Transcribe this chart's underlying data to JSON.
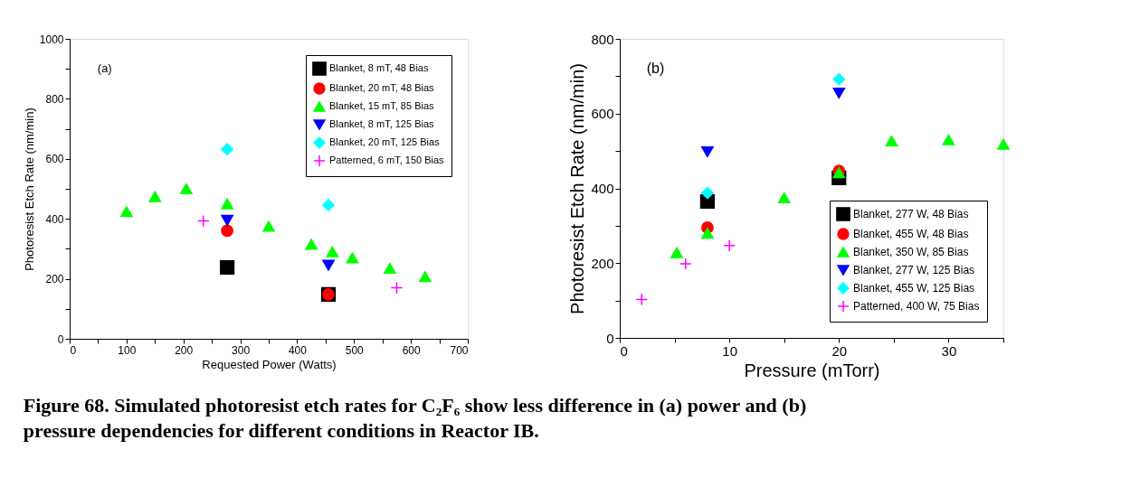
{
  "chart_data": [
    {
      "type": "scatter",
      "xlabel": "Requested Power (Watts)",
      "ylabel": "Photoresist Etch Rate (nm/min)",
      "annotations": [
        "(a)",
        "Figure 68. Simulated photoresist etch rates for C₂F₆ show less difference in (a) power and (b) pressure dependencies for different conditions in Reactor IB."
      ],
      "xlim": [
        0,
        700
      ],
      "ylim": [
        0,
        1000
      ],
      "xticks": [
        0,
        {
          "value": 50,
          "label": null
        },
        100,
        {
          "value": 150,
          "label": null
        },
        200,
        {
          "value": 250,
          "label": null
        },
        300,
        {
          "value": 350,
          "label": null
        },
        400,
        {
          "value": 450,
          "label": null
        },
        500,
        {
          "value": 550,
          "label": null
        },
        600,
        {
          "value": 650,
          "label": null
        },
        700
      ],
      "yticks": [
        0,
        {
          "value": 100,
          "label": null
        },
        200,
        {
          "value": 300,
          "label": null
        },
        400,
        {
          "value": 500,
          "label": null
        },
        600,
        {
          "value": 700,
          "label": null
        },
        800,
        {
          "value": 900,
          "label": null
        },
        1000
      ],
      "grid": false,
      "legend": "top right",
      "series": [
        {
          "name": "Blanket, 8 mT, 48 Bias",
          "color": "#000000",
          "marker": "square",
          "x": [
            277,
            455
          ],
          "values": [
            238,
            148
          ]
        },
        {
          "name": "Blanket, 20 mT, 48 Bias",
          "color": "#ff0000",
          "marker": "circle",
          "x": [
            277,
            455
          ],
          "values": [
            360,
            148
          ]
        },
        {
          "name": "Blanket, 15 mT, 85 Bias",
          "color": "#00ff00",
          "marker": "triangle",
          "x": [
            100,
            150,
            205,
            277,
            350,
            425,
            462,
            497,
            563,
            625
          ],
          "values": [
            424,
            474,
            500,
            450,
            375,
            315,
            290,
            270,
            235,
            207
          ]
        },
        {
          "name": "Blanket, 8 mT, 125 Bias",
          "color": "#0000ff",
          "marker": "triangle-down",
          "x": [
            277,
            455
          ],
          "values": [
            395,
            245
          ]
        },
        {
          "name": "Blanket, 20 mT, 125 Bias",
          "color": "#00ffff",
          "marker": "diamond",
          "x": [
            277,
            455
          ],
          "values": [
            632,
            446
          ]
        },
        {
          "name": "Patterned, 6 mT, 150 Bias",
          "color": "#ff00ff",
          "marker": "cross",
          "x": [
            235,
            575
          ],
          "values": [
            393,
            170
          ]
        }
      ]
    },
    {
      "type": "scatter",
      "xlabel": "Pressure (mTorr)",
      "ylabel": "Photoresist Etch Rate (nm/min)",
      "annotations": [
        "(b)"
      ],
      "xlim": [
        0,
        35
      ],
      "ylim": [
        0,
        800
      ],
      "xticks": [
        0,
        {
          "value": 5,
          "label": null
        },
        10,
        {
          "value": 15,
          "label": null
        },
        20,
        {
          "value": 25,
          "label": null
        },
        30,
        {
          "value": 35,
          "label": null
        }
      ],
      "yticks": [
        0,
        {
          "value": 100,
          "label": null
        },
        200,
        {
          "value": 300,
          "label": null
        },
        400,
        {
          "value": 500,
          "label": null
        },
        600,
        {
          "value": 700,
          "label": null
        },
        800
      ],
      "grid": false,
      "legend": "bottom right",
      "series": [
        {
          "name": "Blanket, 277 W, 48 Bias",
          "color": "#000000",
          "marker": "square",
          "x": [
            8,
            20
          ],
          "values": [
            365,
            428
          ]
        },
        {
          "name": "Blanket, 455 W, 48 Bias",
          "color": "#ff0000",
          "marker": "circle",
          "x": [
            8,
            20
          ],
          "values": [
            295,
            447
          ]
        },
        {
          "name": "Blanket, 350 W, 85 Bias",
          "color": "#00ff00",
          "marker": "triangle",
          "x": [
            5.2,
            8,
            15,
            20,
            24.8,
            30,
            35
          ],
          "values": [
            228,
            280,
            375,
            442,
            527,
            530,
            518
          ]
        },
        {
          "name": "Blanket, 277 W, 125 Bias",
          "color": "#0000ff",
          "marker": "triangle-down",
          "x": [
            8,
            20
          ],
          "values": [
            498,
            655
          ]
        },
        {
          "name": "Blanket, 455 W, 125 Bias",
          "color": "#00ffff",
          "marker": "diamond",
          "x": [
            8,
            20
          ],
          "values": [
            388,
            692
          ]
        },
        {
          "name": "Patterned, 400 W, 75 Bias",
          "color": "#ff00ff",
          "marker": "cross",
          "x": [
            2,
            6,
            10
          ],
          "values": [
            103,
            198,
            247
          ]
        }
      ]
    }
  ]
}
